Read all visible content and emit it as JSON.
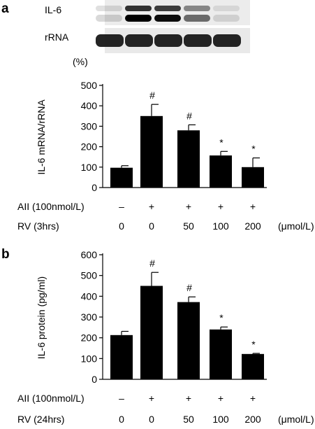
{
  "chart_data": [
    {
      "type": "bar",
      "panel": "a",
      "blot": {
        "bands": [
          "IL-6",
          "rRNA"
        ]
      },
      "unit_label": "(%)",
      "ylabel": "IL-6 mRNA/rRNA",
      "ylim": [
        0,
        500
      ],
      "yticks": [
        0,
        100,
        200,
        300,
        400,
        500
      ],
      "categories": [
        "1",
        "2",
        "3",
        "4",
        "5"
      ],
      "values": [
        97,
        350,
        280,
        157,
        100
      ],
      "errors": [
        10,
        57,
        27,
        20,
        45
      ],
      "annotations": [
        "",
        "#",
        "#",
        "*",
        "*"
      ],
      "conditions": [
        {
          "label": "AII (100nmol/L)",
          "values": [
            "–",
            "+",
            "+",
            "+",
            "+"
          ],
          "unit": ""
        },
        {
          "label": "RV (3hrs)",
          "values": [
            "0",
            "0",
            "50",
            "100",
            "200"
          ],
          "unit": "(μmol/L)"
        }
      ]
    },
    {
      "type": "bar",
      "panel": "b",
      "ylabel": "IL-6  protein (pg/ml)",
      "ylim": [
        0,
        600
      ],
      "yticks": [
        0,
        100,
        200,
        300,
        400,
        500,
        600
      ],
      "categories": [
        "1",
        "2",
        "3",
        "4",
        "5"
      ],
      "values": [
        213,
        450,
        372,
        240,
        122
      ],
      "errors": [
        18,
        65,
        25,
        12,
        3
      ],
      "annotations": [
        "",
        "#",
        "#",
        "*",
        "*"
      ],
      "conditions": [
        {
          "label": "AII (100nmol/L)",
          "values": [
            "–",
            "+",
            "+",
            "+",
            "+"
          ],
          "unit": ""
        },
        {
          "label": "RV (24hrs)",
          "values": [
            "0",
            "0",
            "50",
            "100",
            "200"
          ],
          "unit": "(μmol/L)"
        }
      ]
    }
  ]
}
